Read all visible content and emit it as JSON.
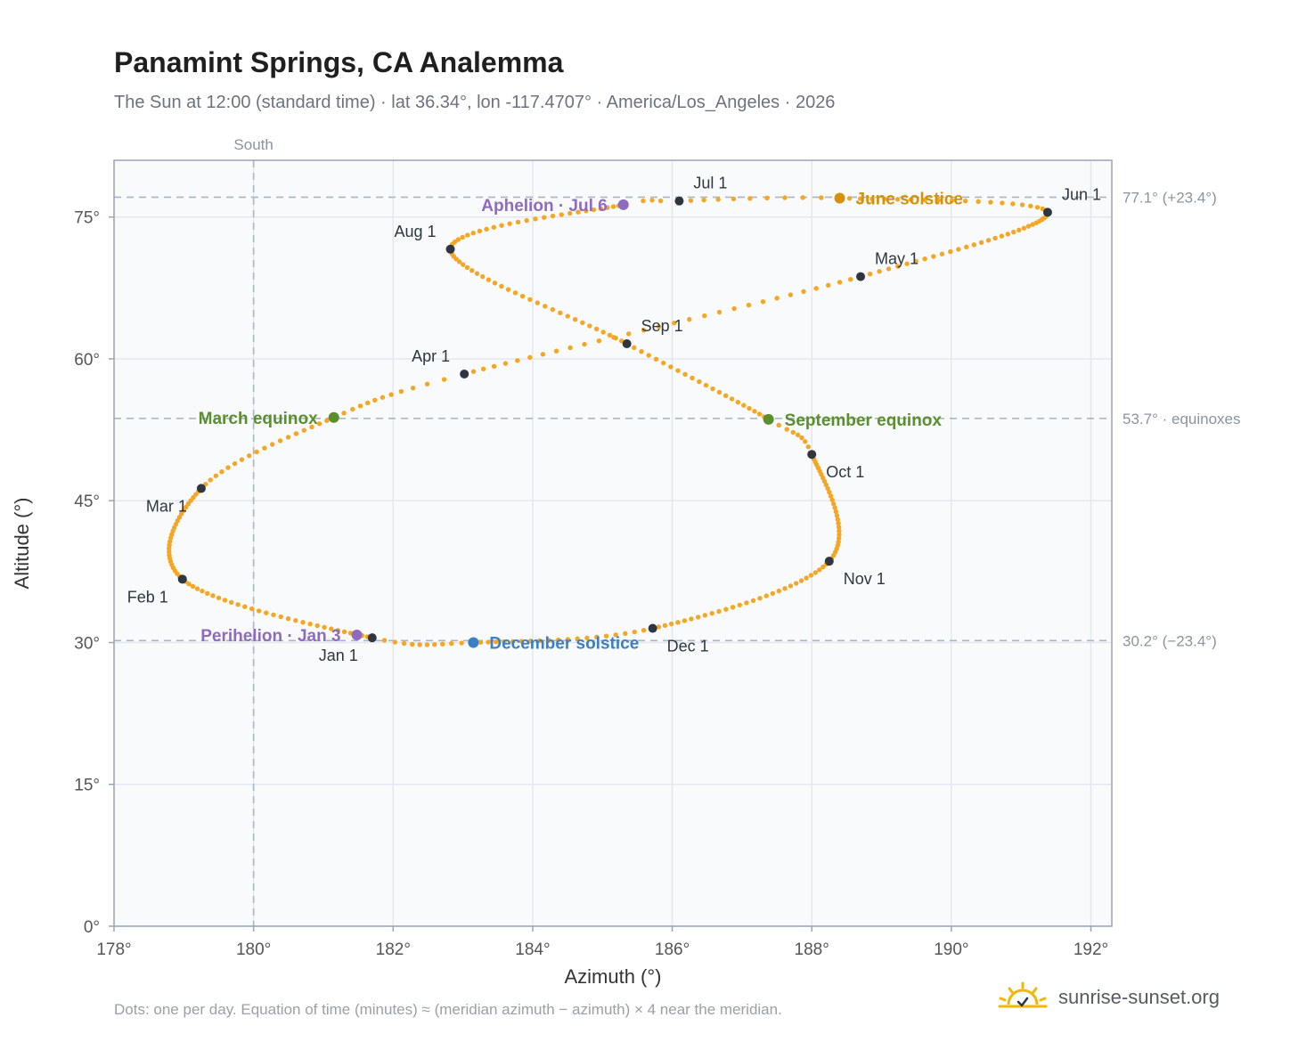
{
  "header": {
    "title": "Panamint Springs, CA Analemma",
    "subtitle": "The Sun at 12:00 (standard time) · lat 36.34°, lon -117.4707° · America/Los_Angeles · 2026"
  },
  "footer": {
    "note": "Dots: one per day. Equation of time (minutes) ≈ (meridian azimuth − azimuth) × 4 near the meridian.",
    "brand": "sunrise-sunset.org"
  },
  "chart_data": {
    "type": "scatter",
    "xlabel": "Azimuth (°)",
    "ylabel": "Altitude (°)",
    "xlim": [
      178,
      192.3
    ],
    "ylim": [
      0,
      81
    ],
    "xticks": [
      178,
      180,
      182,
      184,
      186,
      188,
      190,
      192
    ],
    "yticks": [
      0,
      15,
      30,
      45,
      60,
      75
    ],
    "tick_suffix": "°",
    "grid": true,
    "south_line": {
      "x": 180,
      "label": "South"
    },
    "reference_lines": [
      {
        "y": 77.1,
        "label": "77.1° (+23.4°)"
      },
      {
        "y": 53.7,
        "label": "53.7° · equinoxes"
      },
      {
        "y": 30.2,
        "label": "30.2° (−23.4°)"
      }
    ],
    "colors": {
      "path": "#f5a623",
      "month": "#2f3640",
      "solstice_june": "#d4920a",
      "solstice_december": "#3b7fc4",
      "equinox": "#5a8f2e",
      "apsis": "#8e6bbf",
      "grid": "#e4e8ee",
      "ref": "#aab6c2",
      "plot_bg": "#f8fafc",
      "frame": "#9aa5b4"
    },
    "path_waypoints": [
      {
        "day": 0,
        "az": 181.7,
        "alt": 30.5
      },
      {
        "day": 31,
        "az": 178.98,
        "alt": 36.7
      },
      {
        "day": 59,
        "az": 179.25,
        "alt": 46.3
      },
      {
        "day": 78,
        "az": 181.15,
        "alt": 53.8
      },
      {
        "day": 90,
        "az": 183.02,
        "alt": 58.4
      },
      {
        "day": 120,
        "az": 188.7,
        "alt": 68.7
      },
      {
        "day": 151,
        "az": 191.38,
        "alt": 75.5
      },
      {
        "day": 171,
        "az": 188.4,
        "alt": 77.0
      },
      {
        "day": 181,
        "az": 186.1,
        "alt": 76.7
      },
      {
        "day": 185,
        "az": 185.3,
        "alt": 76.3
      },
      {
        "day": 212,
        "az": 182.82,
        "alt": 71.6
      },
      {
        "day": 243,
        "az": 185.35,
        "alt": 61.6
      },
      {
        "day": 265,
        "az": 187.38,
        "alt": 53.6
      },
      {
        "day": 273,
        "az": 188.0,
        "alt": 49.9
      },
      {
        "day": 304,
        "az": 188.25,
        "alt": 38.6
      },
      {
        "day": 334,
        "az": 185.72,
        "alt": 31.5
      },
      {
        "day": 354,
        "az": 183.15,
        "alt": 30.0
      },
      {
        "day": 365,
        "az": 181.7,
        "alt": 30.5
      }
    ],
    "month_points": [
      {
        "label": "Jan 1",
        "az": 181.7,
        "alt": 30.5,
        "pos": "below-left"
      },
      {
        "label": "Feb 1",
        "az": 178.98,
        "alt": 36.7,
        "pos": "below-left"
      },
      {
        "label": "Mar 1",
        "az": 179.25,
        "alt": 46.3,
        "pos": "below-left"
      },
      {
        "label": "Apr 1",
        "az": 183.02,
        "alt": 58.4,
        "pos": "above-left"
      },
      {
        "label": "May 1",
        "az": 188.7,
        "alt": 68.7,
        "pos": "above-right"
      },
      {
        "label": "Jun 1",
        "az": 191.38,
        "alt": 75.5,
        "pos": "above-right"
      },
      {
        "label": "Jul 1",
        "az": 186.1,
        "alt": 76.7,
        "pos": "above-right"
      },
      {
        "label": "Aug 1",
        "az": 182.82,
        "alt": 71.6,
        "pos": "above-left"
      },
      {
        "label": "Sep 1",
        "az": 185.35,
        "alt": 61.6,
        "pos": "above-right"
      },
      {
        "label": "Oct 1",
        "az": 188.0,
        "alt": 49.9,
        "pos": "below-right"
      },
      {
        "label": "Nov 1",
        "az": 188.25,
        "alt": 38.6,
        "pos": "below-right"
      },
      {
        "label": "Dec 1",
        "az": 185.72,
        "alt": 31.5,
        "pos": "below-right"
      }
    ],
    "event_points": [
      {
        "label": "June solstice",
        "az": 188.4,
        "alt": 77.0,
        "kind": "solstice_june",
        "pos": "right"
      },
      {
        "label": "December solstice",
        "az": 183.15,
        "alt": 30.0,
        "kind": "solstice_december",
        "pos": "right"
      },
      {
        "label": "March equinox",
        "az": 181.15,
        "alt": 53.8,
        "kind": "equinox",
        "pos": "left"
      },
      {
        "label": "September equinox",
        "az": 187.38,
        "alt": 53.6,
        "kind": "equinox",
        "pos": "right"
      },
      {
        "label": "Aphelion · Jul 6",
        "az": 185.3,
        "alt": 76.3,
        "kind": "apsis",
        "pos": "left"
      },
      {
        "label": "Perihelion · Jan 3",
        "az": 181.48,
        "alt": 30.8,
        "kind": "apsis",
        "pos": "left"
      }
    ]
  }
}
